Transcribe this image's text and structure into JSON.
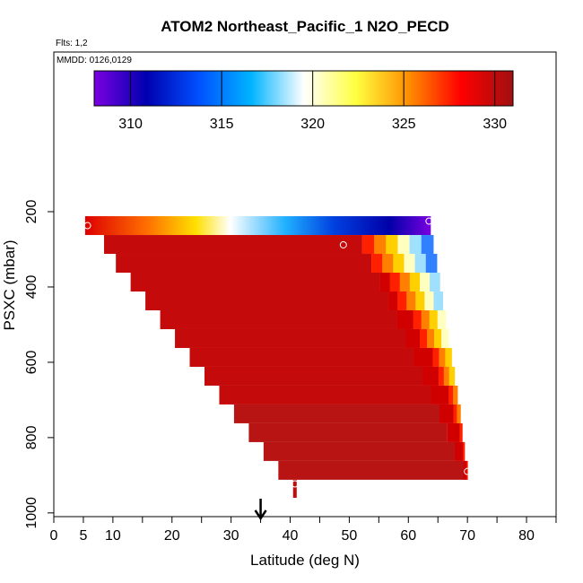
{
  "chart_data": {
    "type": "heatmap",
    "title": "ATOM2 Northeast_Pacific_1 N2O_PECD",
    "flights_label": "Flts: 1,2",
    "dates_label": "MMDD: 0126,0129",
    "xlabel": "Latitude (deg N)",
    "ylabel": "PSXC (mbar)",
    "xlim": [
      0,
      85
    ],
    "ylim": [
      1000,
      200
    ],
    "x_ticks": [
      "0",
      "5",
      "10",
      "20",
      "30",
      "40",
      "50",
      "60",
      "70",
      "80"
    ],
    "x_tick_values": [
      0,
      5,
      10,
      20,
      30,
      40,
      50,
      60,
      70,
      80
    ],
    "x_minor_ticks": [
      15,
      25,
      35,
      45,
      55,
      65,
      75,
      85
    ],
    "y_ticks": [
      "200",
      "400",
      "600",
      "800",
      "1000"
    ],
    "y_tick_values": [
      200,
      400,
      600,
      800,
      1000
    ],
    "colorbar": {
      "range": [
        308,
        331
      ],
      "ticks": [
        "310",
        "315",
        "320",
        "325",
        "330"
      ],
      "tick_values": [
        310,
        315,
        320,
        325,
        330
      ],
      "colors": [
        "#7a00e0",
        "#0000b0",
        "#0050ff",
        "#00b4ff",
        "#ffffff",
        "#ffff40",
        "#ff9000",
        "#ff0000",
        "#a01010"
      ]
    },
    "arrow_latitude": 35,
    "track_segments": [
      {
        "lat_start": 5.3,
        "lat_end": 63.8,
        "p_top": 212,
        "p_bottom": 262,
        "value": "gradient"
      },
      {
        "lat_start": 8.5,
        "lat_end": 64.2,
        "p_top": 262,
        "p_bottom": 912,
        "value": 330.5
      }
    ],
    "rows": [
      {
        "p_top": 262,
        "p_bottom": 312,
        "lat_start": 8.5,
        "lat_end": 64.2
      },
      {
        "p_top": 312,
        "p_bottom": 362,
        "lat_start": 10.5,
        "lat_end": 64.8
      },
      {
        "p_top": 362,
        "p_bottom": 412,
        "lat_start": 13.0,
        "lat_end": 65.3
      },
      {
        "p_top": 412,
        "p_bottom": 462,
        "lat_start": 15.5,
        "lat_end": 65.8
      },
      {
        "p_top": 462,
        "p_bottom": 512,
        "lat_start": 18.0,
        "lat_end": 66.3
      },
      {
        "p_top": 512,
        "p_bottom": 562,
        "lat_start": 20.5,
        "lat_end": 66.8
      },
      {
        "p_top": 562,
        "p_bottom": 612,
        "lat_start": 23.0,
        "lat_end": 67.3
      },
      {
        "p_top": 612,
        "p_bottom": 662,
        "lat_start": 25.5,
        "lat_end": 67.8
      },
      {
        "p_top": 662,
        "p_bottom": 712,
        "lat_start": 28.0,
        "lat_end": 68.3
      },
      {
        "p_top": 712,
        "p_bottom": 762,
        "lat_start": 30.5,
        "lat_end": 68.8
      },
      {
        "p_top": 762,
        "p_bottom": 812,
        "lat_start": 33.0,
        "lat_end": 69.1
      },
      {
        "p_top": 812,
        "p_bottom": 862,
        "lat_start": 35.5,
        "lat_end": 69.5
      },
      {
        "p_top": 862,
        "p_bottom": 912,
        "lat_start": 38.0,
        "lat_end": 70.0
      }
    ],
    "points": [
      {
        "lat": 5.7,
        "p": 237
      },
      {
        "lat": 63.5,
        "p": 225
      },
      {
        "lat": 49.0,
        "p": 288
      },
      {
        "lat": 70.0,
        "p": 890
      },
      {
        "lat": 40.8,
        "p": 923
      }
    ],
    "surface_stub": {
      "lat": 40.8,
      "p_top": 912,
      "p_bottom": 960
    },
    "grid": false,
    "legend": "top"
  }
}
